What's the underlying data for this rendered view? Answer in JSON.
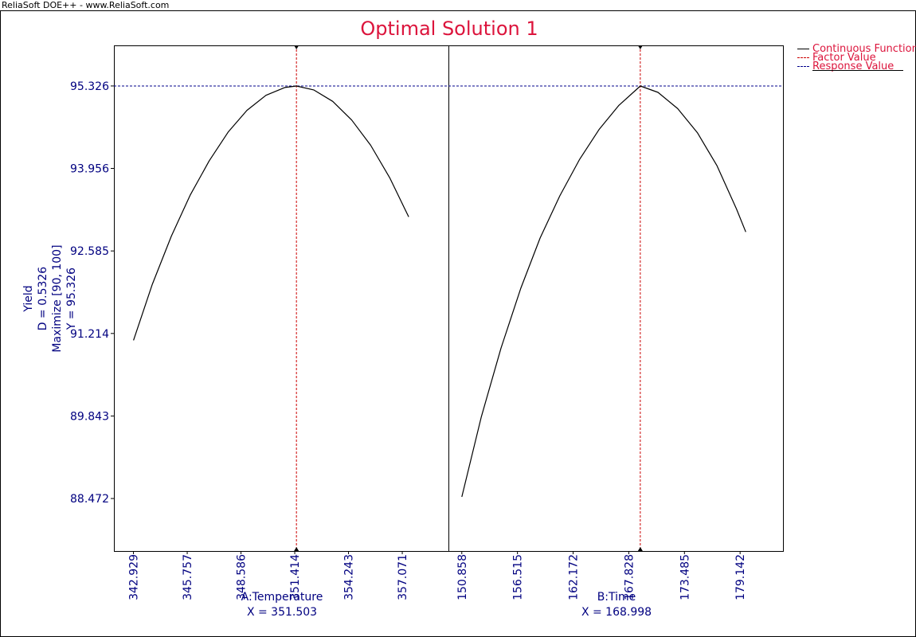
{
  "app": {
    "watermark": "ReliaSoft DOE++ - www.ReliaSoft.com"
  },
  "legend": {
    "items": [
      {
        "label": "Continuous Function",
        "color": "#000000",
        "style": "solid"
      },
      {
        "label": "Factor Value",
        "color": "#cc0000",
        "style": "dashed"
      },
      {
        "label": "Response Value",
        "color": "#00008b",
        "style": "dashed"
      }
    ]
  },
  "chart_data": {
    "type": "line",
    "title": "Optimal Solution 1",
    "ylabel_lines": [
      "Yield",
      "D = 0.5326",
      "Maximize [90, 100]",
      "Y = 95.326"
    ],
    "y_ticks": [
      "95.326",
      "93.956",
      "92.585",
      "91.214",
      "89.843",
      "88.472"
    ],
    "ylim": [
      87.6,
      96.0
    ],
    "response_value": 95.326,
    "colors": {
      "title": "#dc143c",
      "axis_text": "#000080",
      "curve": "#000000",
      "factor_line": "#cc0000",
      "response_line": "#00008b"
    },
    "panels": [
      {
        "xlabel": "A:Temperature",
        "x_value_text": "X = 351.503",
        "x_ticks": [
          "342.929",
          "345.757",
          "348.586",
          "351.414",
          "354.243",
          "357.071"
        ],
        "xlim": [
          341.9,
          359.5
        ],
        "factor_value": 351.503,
        "series": [
          {
            "x": [
              342.929,
              343.92,
              344.92,
              345.91,
              346.91,
              347.91,
              348.9,
              349.9,
              350.89,
              351.503,
              352.41,
              353.41,
              354.41,
              355.41,
              356.41,
              357.41
            ],
            "y": [
              91.1,
              92.03,
              92.83,
              93.51,
              94.08,
              94.56,
              94.92,
              95.17,
              95.3,
              95.326,
              95.26,
              95.07,
              94.76,
              94.34,
              93.8,
              93.15
            ]
          }
        ]
      },
      {
        "xlabel": "B:Time",
        "x_value_text": "X = 168.998",
        "x_ticks": [
          "150.858",
          "156.515",
          "162.172",
          "167.828",
          "173.485",
          "179.142"
        ],
        "xlim": [
          149.5,
          183.5
        ],
        "factor_value": 168.998,
        "series": [
          {
            "x": [
              150.858,
              152.84,
              154.84,
              156.84,
              158.82,
              160.82,
              162.81,
              164.8,
              166.8,
              168.998,
              170.8,
              172.8,
              174.8,
              176.8,
              178.78,
              179.72
            ],
            "y": [
              88.5,
              89.83,
              90.97,
              91.96,
              92.8,
              93.5,
              94.1,
              94.6,
              95.0,
              95.326,
              95.22,
              94.95,
              94.55,
              94.0,
              93.28,
              92.9
            ]
          }
        ]
      }
    ]
  }
}
